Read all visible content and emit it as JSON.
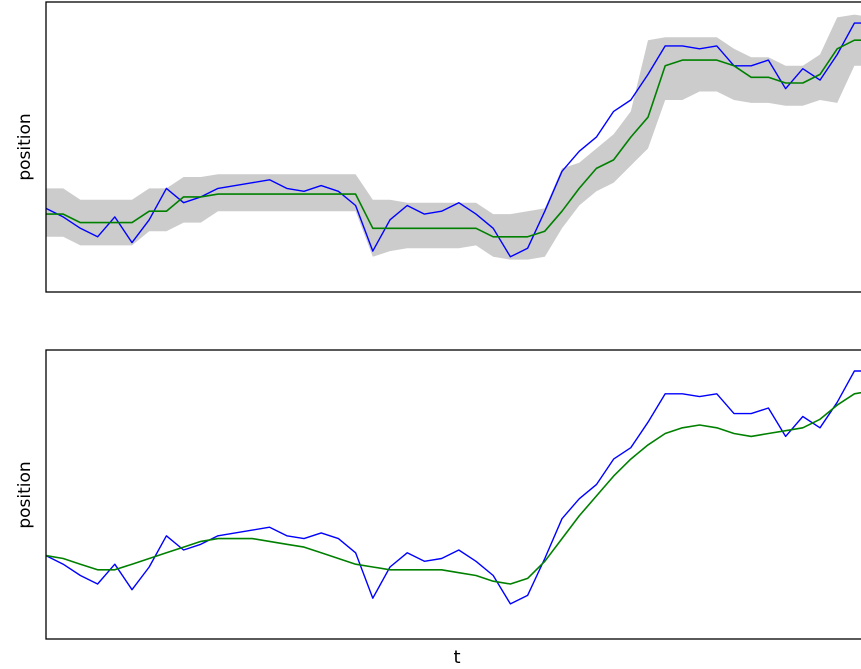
{
  "chart_data": [
    {
      "type": "line",
      "ylabel": "position",
      "xlabel": "",
      "x_range": [
        0,
        100
      ],
      "y_range": [
        0,
        100
      ],
      "x": [
        0,
        2,
        4,
        6,
        8,
        10,
        12,
        14,
        16,
        18,
        20,
        22,
        24,
        26,
        28,
        30,
        32,
        34,
        36,
        38,
        40,
        42,
        44,
        46,
        48,
        50,
        52,
        54,
        56,
        58,
        60,
        62,
        64,
        66,
        68,
        70,
        72,
        74,
        76,
        78,
        80,
        82,
        84,
        86,
        88,
        90,
        92,
        94,
        96,
        98,
        100
      ],
      "series": [
        {
          "color": "#0000ff",
          "values": [
            29,
            26,
            22,
            19,
            26,
            17,
            25,
            36,
            31,
            33,
            36,
            37,
            38,
            39,
            36,
            35,
            37,
            35,
            30,
            14,
            25,
            30,
            27,
            28,
            31,
            27,
            22,
            12,
            15,
            28,
            42,
            49,
            54,
            63,
            67,
            76,
            86,
            86,
            85,
            86,
            79,
            79,
            81,
            71,
            78,
            74,
            83,
            94,
            94,
            89,
            79
          ]
        },
        {
          "color": "#008000",
          "values": [
            27,
            27,
            24,
            24,
            24,
            24,
            28,
            28,
            33,
            33,
            34,
            34,
            34,
            34,
            34,
            34,
            34,
            34,
            34,
            22,
            22,
            22,
            22,
            22,
            22,
            22,
            19,
            19,
            19,
            21,
            28,
            36,
            43,
            46,
            54,
            61,
            79,
            81,
            81,
            81,
            79,
            75,
            75,
            73,
            73,
            76,
            85,
            88,
            88,
            86,
            85
          ]
        }
      ],
      "band": {
        "color": "#cccccc",
        "lower": [
          19,
          19,
          16,
          16,
          16,
          16,
          21,
          21,
          24,
          24,
          28,
          28,
          28,
          28,
          28,
          28,
          28,
          28,
          28,
          12,
          14,
          15,
          15,
          15,
          15,
          16,
          12,
          11,
          11,
          12,
          22,
          30,
          35,
          38,
          44,
          50,
          67,
          67,
          70,
          70,
          67,
          66,
          66,
          65,
          65,
          67,
          66,
          79,
          79,
          77,
          76
        ],
        "upper": [
          36,
          36,
          32,
          32,
          32,
          32,
          36,
          36,
          40,
          40,
          41,
          41,
          41,
          41,
          41,
          41,
          41,
          41,
          41,
          32,
          32,
          31,
          31,
          31,
          31,
          31,
          27,
          27,
          28,
          29,
          43,
          45,
          50,
          55,
          63,
          88,
          89,
          89,
          89,
          89,
          85,
          82,
          82,
          79,
          79,
          83,
          96,
          97,
          96,
          95,
          94
        ]
      }
    },
    {
      "type": "line",
      "ylabel": "position",
      "xlabel": "t",
      "x_range": [
        0,
        100
      ],
      "y_range": [
        0,
        100
      ],
      "x": [
        0,
        2,
        4,
        6,
        8,
        10,
        12,
        14,
        16,
        18,
        20,
        22,
        24,
        26,
        28,
        30,
        32,
        34,
        36,
        38,
        40,
        42,
        44,
        46,
        48,
        50,
        52,
        54,
        56,
        58,
        60,
        62,
        64,
        66,
        68,
        70,
        72,
        74,
        76,
        78,
        80,
        82,
        84,
        86,
        88,
        90,
        92,
        94,
        96,
        98,
        100
      ],
      "series": [
        {
          "color": "#0000ff",
          "values": [
            29,
            26,
            22,
            19,
            26,
            17,
            25,
            36,
            31,
            33,
            36,
            37,
            38,
            39,
            36,
            35,
            37,
            35,
            30,
            14,
            25,
            30,
            27,
            28,
            31,
            27,
            22,
            12,
            15,
            28,
            42,
            49,
            54,
            63,
            67,
            76,
            86,
            86,
            85,
            86,
            79,
            79,
            81,
            71,
            78,
            74,
            83,
            94,
            94,
            89,
            79
          ]
        },
        {
          "color": "#008000",
          "values": [
            29,
            28,
            26,
            24,
            24,
            26,
            28,
            30,
            32,
            34,
            35,
            35,
            35,
            34,
            33,
            32,
            30,
            28,
            26,
            25,
            24,
            24,
            24,
            24,
            23,
            22,
            20,
            19,
            21,
            27,
            35,
            43,
            50,
            57,
            63,
            68,
            72,
            74,
            75,
            74,
            72,
            71,
            72,
            73,
            74,
            77,
            82,
            86,
            87,
            86,
            84
          ]
        }
      ]
    }
  ]
}
